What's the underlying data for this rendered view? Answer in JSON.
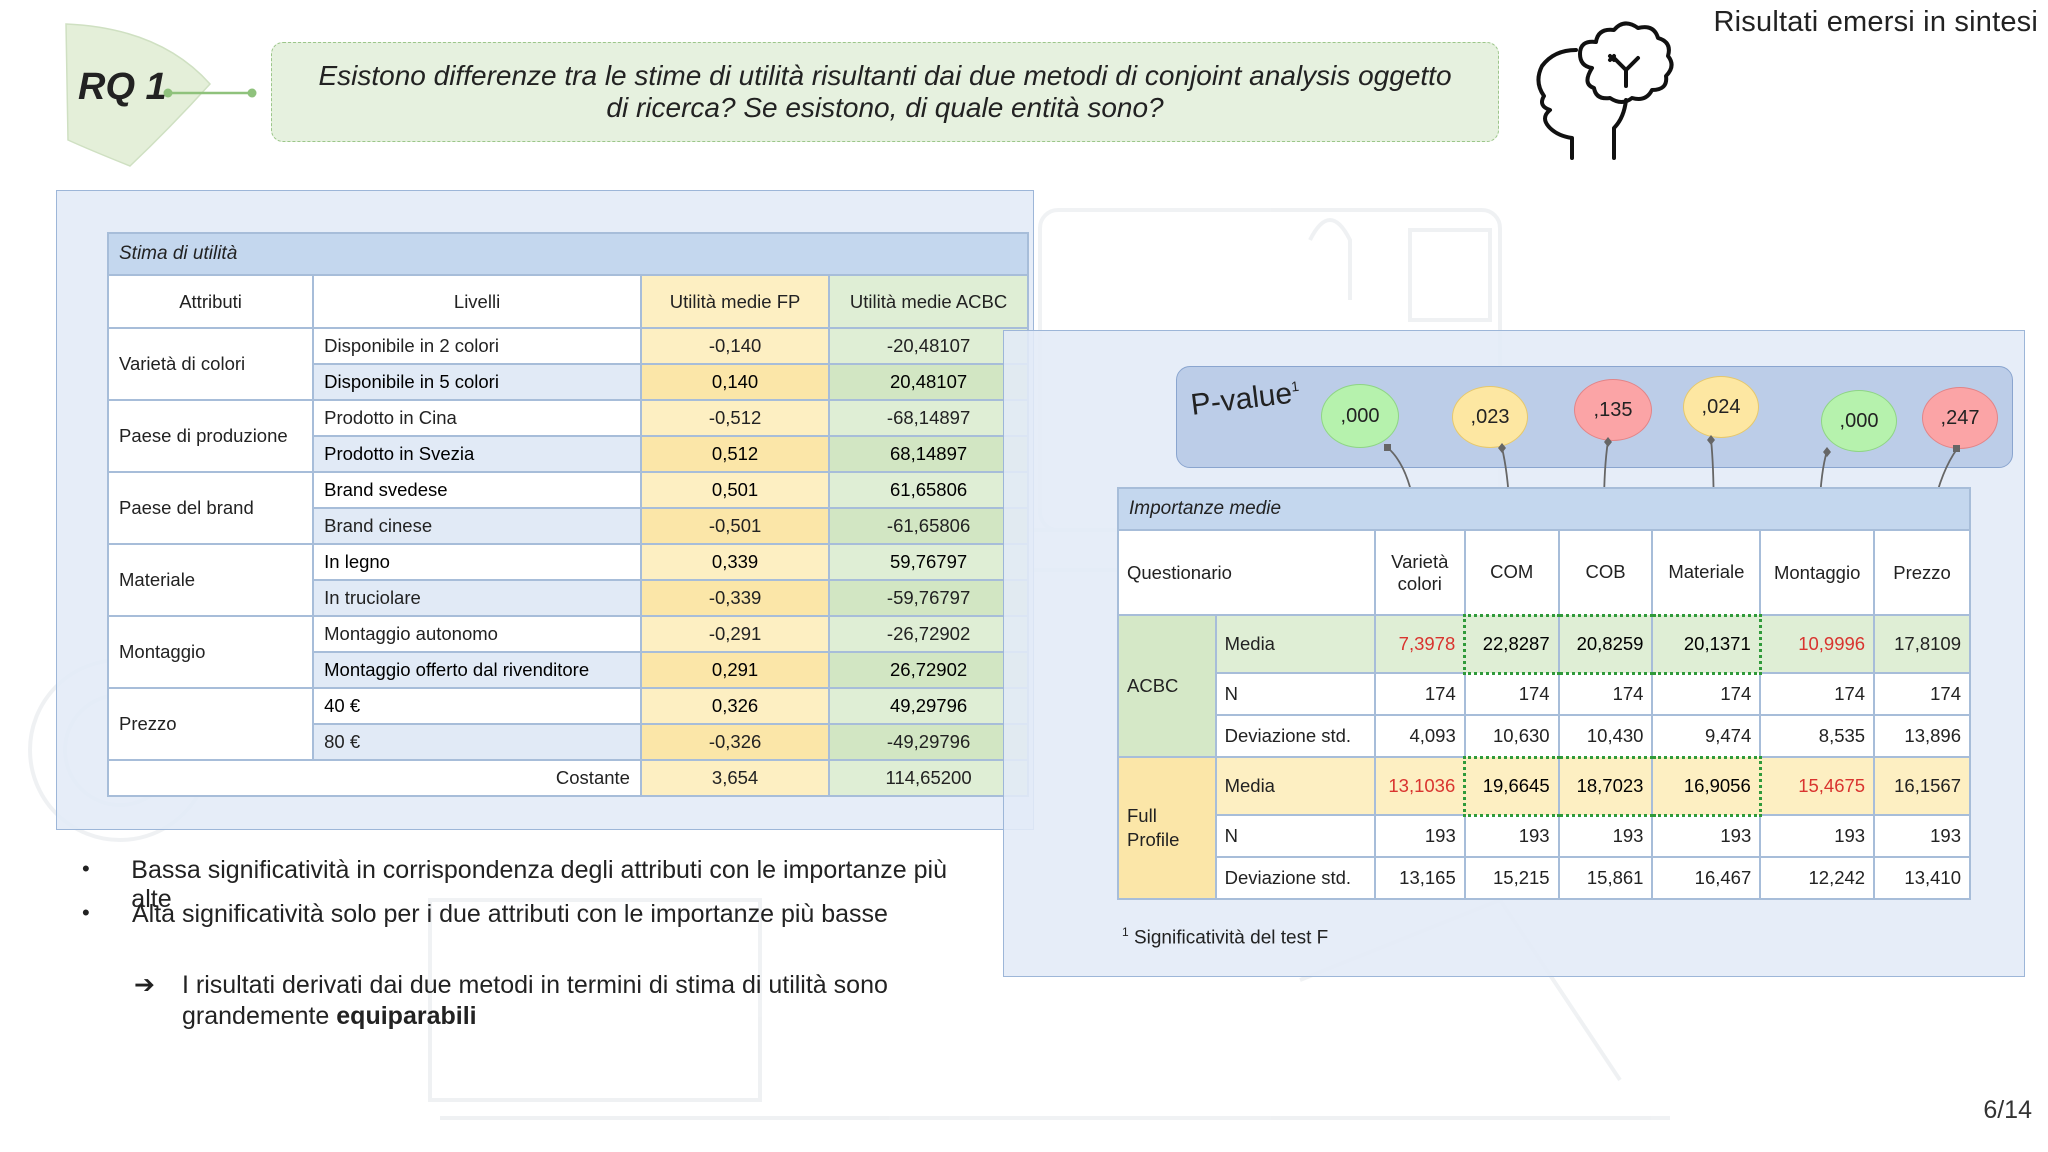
{
  "slide": {
    "title": "Risultati emersi in sintesi",
    "page": "6/14"
  },
  "rq": {
    "label": "RQ 1",
    "question": "Esistono differenze tra le stime di utilità risultanti dai due metodi di conjoint analysis oggetto di ricerca? Se esistono, di quale entità sono?"
  },
  "colors": {
    "fp": "#fdefc2",
    "acbc": "#dfeed5",
    "header_blue": "#c4d7ee",
    "green_pill": "#b6f2ad",
    "yellow_pill": "#fde7a2",
    "red_pill": "#fba4a6",
    "highlight_red": "#d9342f"
  },
  "utility": {
    "caption": "Stima di utilità",
    "headers": {
      "attributes": "Attributi",
      "levels": "Livelli",
      "fp": "Utilità medie FP",
      "acbc": "Utilità medie ACBC"
    },
    "groups": [
      {
        "attribute": "Varietà di colori",
        "rows": [
          {
            "level": "Disponibile in 2 colori",
            "fp": "-0,140",
            "acbc": "-20,48107"
          },
          {
            "level": "Disponibile in 5 colori",
            "fp": "0,140",
            "acbc": "20,48107"
          }
        ]
      },
      {
        "attribute": "Paese di produzione",
        "rows": [
          {
            "level": "Prodotto in Cina",
            "fp": "-0,512",
            "acbc": "-68,14897"
          },
          {
            "level": "Prodotto in Svezia",
            "fp": "0,512",
            "acbc": "68,14897"
          }
        ]
      },
      {
        "attribute": "Paese del brand",
        "rows": [
          {
            "level": "Brand svedese",
            "fp": "0,501",
            "acbc": "61,65806"
          },
          {
            "level": "Brand cinese",
            "fp": "-0,501",
            "acbc": "-61,65806"
          }
        ]
      },
      {
        "attribute": "Materiale",
        "rows": [
          {
            "level": "In legno",
            "fp": "0,339",
            "acbc": "59,76797"
          },
          {
            "level": "In truciolare",
            "fp": "-0,339",
            "acbc": "-59,76797"
          }
        ]
      },
      {
        "attribute": "Montaggio",
        "rows": [
          {
            "level": "Montaggio autonomo",
            "fp": "-0,291",
            "acbc": "-26,72902"
          },
          {
            "level": "Montaggio offerto dal rivenditore",
            "fp": "0,291",
            "acbc": "26,72902"
          }
        ]
      },
      {
        "attribute": "Prezzo",
        "rows": [
          {
            "level": "40 €",
            "fp": "0,326",
            "acbc": "49,29796"
          },
          {
            "level": "80 €",
            "fp": "-0,326",
            "acbc": "-49,29796"
          }
        ]
      }
    ],
    "constant": {
      "label": "Costante",
      "fp": "3,654",
      "acbc": "114,65200"
    }
  },
  "bullets": [
    "Bassa significatività in corrispondenza degli attributi con le importanze più alte",
    "Alta significatività solo per i due attributi con le importanze più basse"
  ],
  "conclusion": {
    "arrow": "➔",
    "text": "I risultati derivati dai due metodi in termini di stima di utilità sono grandemente",
    "bold": "equiparabili"
  },
  "pvalue": {
    "label": "P-value",
    "sup": "1",
    "values": [
      {
        "value": ",000",
        "color": "green"
      },
      {
        "value": ",023",
        "color": "yellow"
      },
      {
        "value": ",135",
        "color": "red"
      },
      {
        "value": ",024",
        "color": "yellow"
      },
      {
        "value": ",000",
        "color": "green"
      },
      {
        "value": ",247",
        "color": "red"
      }
    ]
  },
  "importance": {
    "caption": "Importanze medie",
    "headers": [
      "Questionario",
      "Varietà colori",
      "COM",
      "COB",
      "Materiale",
      "Montaggio",
      "Prezzo"
    ],
    "groups": [
      {
        "name": "ACBC",
        "rows": [
          {
            "stat": "Media",
            "values": [
              "7,3978",
              "22,8287",
              "20,8259",
              "20,1371",
              "10,9996",
              "17,8109"
            ]
          },
          {
            "stat": "N",
            "values": [
              "174",
              "174",
              "174",
              "174",
              "174",
              "174"
            ]
          },
          {
            "stat": "Deviazione std.",
            "values": [
              "4,093",
              "10,630",
              "10,430",
              "9,474",
              "8,535",
              "13,896"
            ]
          }
        ]
      },
      {
        "name": "Full Profile",
        "rows": [
          {
            "stat": "Media",
            "values": [
              "13,1036",
              "19,6645",
              "18,7023",
              "16,9056",
              "15,4675",
              "16,1567"
            ]
          },
          {
            "stat": "N",
            "values": [
              "193",
              "193",
              "193",
              "193",
              "193",
              "193"
            ]
          },
          {
            "stat": "Deviazione std.",
            "values": [
              "13,165",
              "15,215",
              "15,861",
              "16,467",
              "12,242",
              "13,410"
            ]
          }
        ]
      }
    ],
    "footnote_sup": "1",
    "footnote": "Significatività del test F"
  }
}
